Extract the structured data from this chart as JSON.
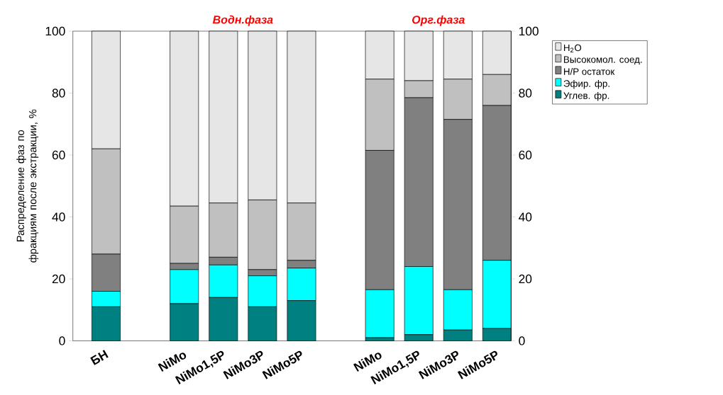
{
  "chart_data": {
    "type": "bar",
    "stacked": true,
    "categories": [
      "БН",
      null,
      "NiMo",
      "NiMo1,5P",
      "NiMo3P",
      "NiMo5P",
      null,
      "NiMo",
      "NiMo1,5P",
      "NiMo3P",
      "NiMo5P"
    ],
    "series": [
      {
        "name": "Углев. фр.",
        "color": "#008080",
        "values": [
          11,
          null,
          12,
          14,
          11,
          13,
          null,
          1,
          2,
          3.5,
          4
        ]
      },
      {
        "name": "Эфир. фр.",
        "color": "#00ffff",
        "values": [
          5,
          null,
          11,
          10.5,
          10,
          10.5,
          null,
          15.5,
          22,
          13,
          22
        ]
      },
      {
        "name": "Н/Р остаток",
        "color": "#808080",
        "values": [
          12,
          null,
          2,
          2.5,
          2,
          2.5,
          null,
          45,
          54.5,
          55,
          50
        ]
      },
      {
        "name": "Высокомол. соед.",
        "color": "#c0c0c0",
        "values": [
          34,
          null,
          18.5,
          17.5,
          22.5,
          18.5,
          null,
          23,
          5.5,
          13,
          10
        ]
      },
      {
        "name": "H$_{2}$O",
        "color": "#e6e6e6",
        "values": [
          38,
          null,
          56.5,
          55.5,
          54.5,
          55.5,
          null,
          15.5,
          16,
          15.5,
          14
        ]
      }
    ],
    "ylabel": "Распределение фаз по фракциям после экстракции, %",
    "annotations": [
      "Водн.фаза",
      "Орг.фаза"
    ],
    "ylim": [
      0,
      100
    ],
    "yticks": [
      0,
      20,
      40,
      60,
      80,
      100
    ],
    "y2lim": [
      0,
      100
    ],
    "y2ticks": [
      0,
      20,
      40,
      60,
      80,
      100
    ],
    "legend": "top right",
    "grid": false
  }
}
